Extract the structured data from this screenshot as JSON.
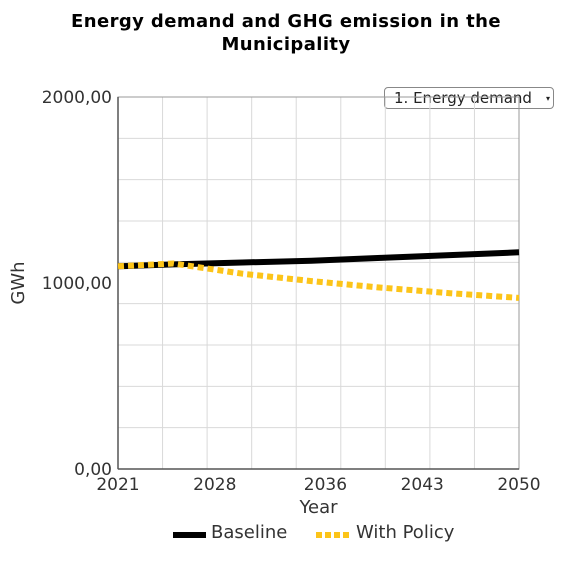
{
  "title": {
    "line1": "Energy demand and GHG emission in the",
    "line2": "Municipality"
  },
  "dropdown": {
    "selected": "1. Energy demand",
    "arrow": "▾"
  },
  "chart_data": {
    "type": "line",
    "title": "Energy demand and GHG emission in the Municipality",
    "xlabel": "Year",
    "ylabel": "GWh",
    "xlim": [
      2021,
      2050
    ],
    "ylim": [
      0,
      2000
    ],
    "x_ticks": [
      "2021",
      "2028",
      "2036",
      "2043",
      "2050"
    ],
    "y_ticks": [
      "0,00",
      "1000,00",
      "2000,00"
    ],
    "grid": true,
    "legend_position": "bottom",
    "x": [
      2021,
      2025,
      2030,
      2035,
      2040,
      2045,
      2050
    ],
    "series": [
      {
        "name": "Baseline",
        "color": "#000000",
        "style": "solid",
        "values": [
          1090,
          1100,
          1110,
          1120,
          1135,
          1150,
          1165
        ]
      },
      {
        "name": "With Policy",
        "color": "#fcc419",
        "style": "dotted",
        "values": [
          1090,
          1105,
          1050,
          1010,
          975,
          945,
          920
        ]
      }
    ]
  }
}
